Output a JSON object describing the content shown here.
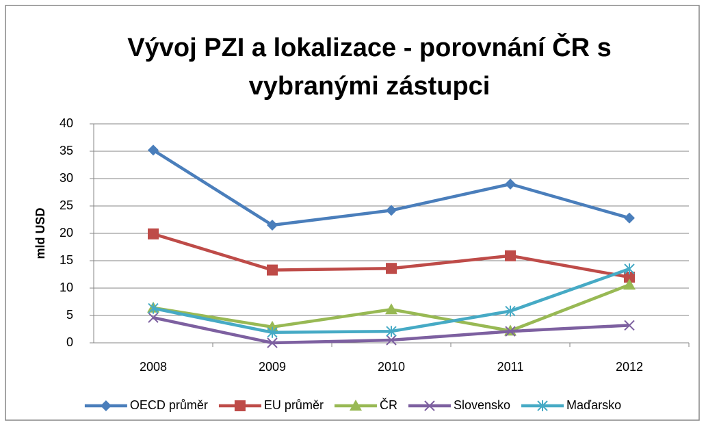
{
  "chart_data": {
    "type": "line",
    "title": [
      "Vývoj PZI a lokalizace - porovnání ČR s",
      "vybranými zástupci"
    ],
    "y_label": "mld USD",
    "categories": [
      "2008",
      "2009",
      "2010",
      "2011",
      "2012"
    ],
    "series": [
      {
        "name": "OECD průměr",
        "color": "#4a7ebb",
        "marker": "diamond",
        "values": [
          35.2,
          21.5,
          24.2,
          29.0,
          22.8
        ]
      },
      {
        "name": "EU průměr",
        "color": "#be4b48",
        "marker": "square",
        "values": [
          19.9,
          13.3,
          13.6,
          15.9,
          12.0
        ]
      },
      {
        "name": "ČR",
        "color": "#98b954",
        "marker": "triangle",
        "values": [
          6.4,
          2.9,
          6.1,
          2.2,
          10.6
        ]
      },
      {
        "name": "Slovensko",
        "color": "#7d60a0",
        "marker": "x",
        "values": [
          4.6,
          0.0,
          0.5,
          2.1,
          3.2
        ]
      },
      {
        "name": "Maďarsko",
        "color": "#46aac5",
        "marker": "star",
        "values": [
          6.3,
          1.9,
          2.1,
          5.8,
          13.5
        ]
      }
    ],
    "ylim": [
      0,
      40
    ],
    "yticks": [
      0,
      5,
      10,
      15,
      20,
      25,
      30,
      35,
      40
    ],
    "grid": true,
    "legend": "bottom"
  }
}
